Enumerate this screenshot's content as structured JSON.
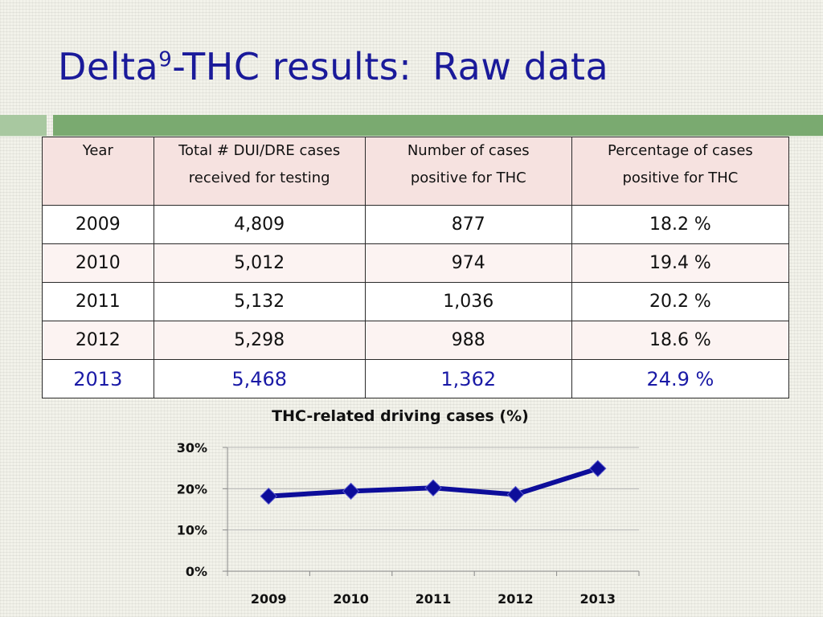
{
  "slide": {
    "title_pre": "Delta",
    "title_sup": "9",
    "title_main": "-THC results:",
    "title_post": "Raw data"
  },
  "table": {
    "headers": [
      [
        "Year"
      ],
      [
        "Total # DUI/DRE cases",
        "received for testing"
      ],
      [
        "Number of cases",
        "positive for THC"
      ],
      [
        "Percentage of cases",
        "positive for THC"
      ]
    ],
    "rows": [
      [
        "2009",
        "4,809",
        "877",
        "18.2  %"
      ],
      [
        "2010",
        "5,012",
        "974",
        "19.4  %"
      ],
      [
        "2011",
        "5,132",
        "1,036",
        "20.2  %"
      ],
      [
        "2012",
        "5,298",
        "988",
        "18.6  %"
      ],
      [
        "2013",
        "5,468",
        "1,362",
        "24.9  %"
      ]
    ],
    "highlight_color": "#1a1aa6"
  },
  "chart_data": {
    "type": "line",
    "title": "THC-related driving cases (%)",
    "categories": [
      "2009",
      "2010",
      "2011",
      "2012",
      "2013"
    ],
    "series": [
      {
        "values": [
          18.2,
          19.4,
          20.2,
          18.6,
          24.9
        ]
      }
    ],
    "y_ticks": [
      "0%",
      "10%",
      "20%",
      "30%"
    ],
    "ylim": [
      0,
      30
    ],
    "grid": true,
    "legend": "none",
    "line_color": "#0d0d9a"
  }
}
